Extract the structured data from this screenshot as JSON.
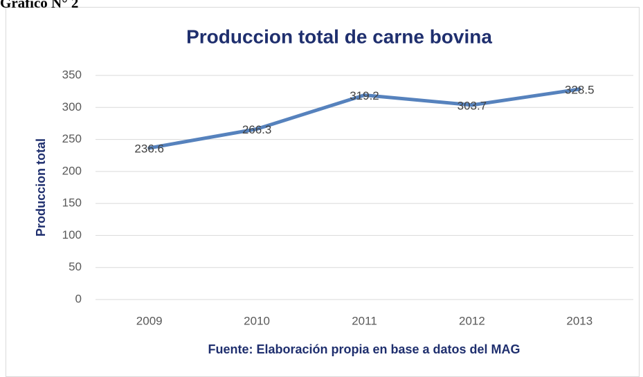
{
  "caption": "Gráfico N° 2",
  "chart_data": {
    "type": "line",
    "title": "Produccion total de carne bovina",
    "y_label": "Produccion total",
    "x_label": "Fuente: Elaboración propia en base a datos del MAG",
    "categories": [
      "2009",
      "2010",
      "2011",
      "2012",
      "2013"
    ],
    "values": [
      236.6,
      266.3,
      319.2,
      303.7,
      328.5
    ],
    "color": "#5682bd",
    "ylim": [
      0,
      350
    ],
    "yticks": [
      0,
      50,
      100,
      150,
      200,
      250,
      300,
      350
    ],
    "grid": true,
    "data_labels": true
  }
}
